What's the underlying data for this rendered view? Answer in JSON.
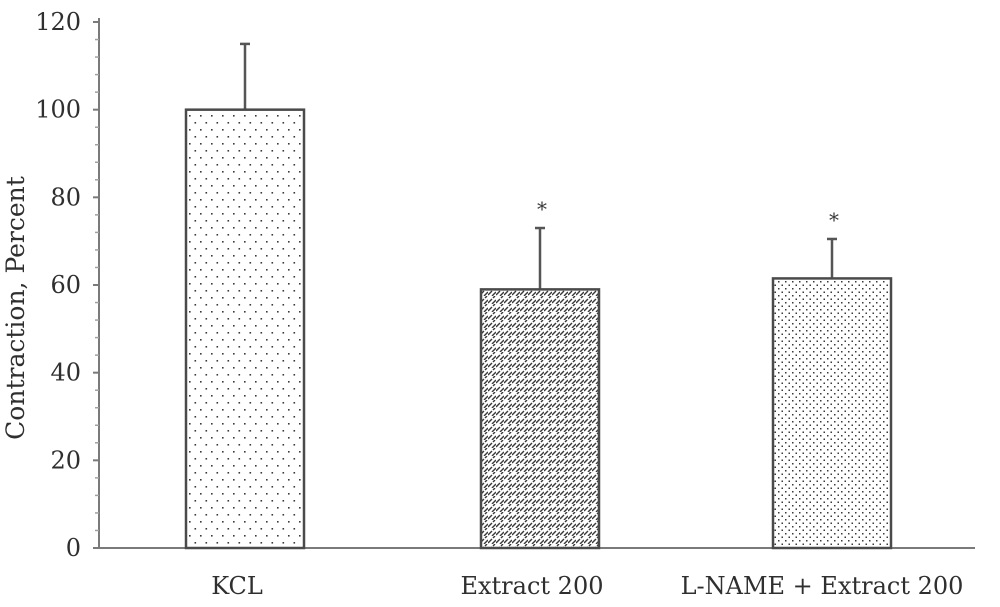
{
  "chart_data": {
    "type": "bar",
    "title": "",
    "xlabel": "",
    "ylabel": "Contraction, Percent",
    "ylim": [
      0,
      120
    ],
    "yticks": [
      0,
      20,
      40,
      60,
      80,
      100,
      120
    ],
    "grid": false,
    "categories": [
      "KCL",
      "Extract 200",
      "L-NAME + Extract 200"
    ],
    "values": [
      100,
      59,
      61.5
    ],
    "errors": [
      15,
      14,
      9
    ],
    "significance": [
      "",
      "*",
      "*"
    ],
    "fill_patterns": [
      "sparse-dots",
      "diagonal-dashes",
      "dense-dots"
    ]
  },
  "colors": {
    "axis": "#7a7a7a",
    "bar_outline": "#4a4a4a",
    "pattern": "#3a3a3a",
    "text": "#2f2f2f"
  }
}
